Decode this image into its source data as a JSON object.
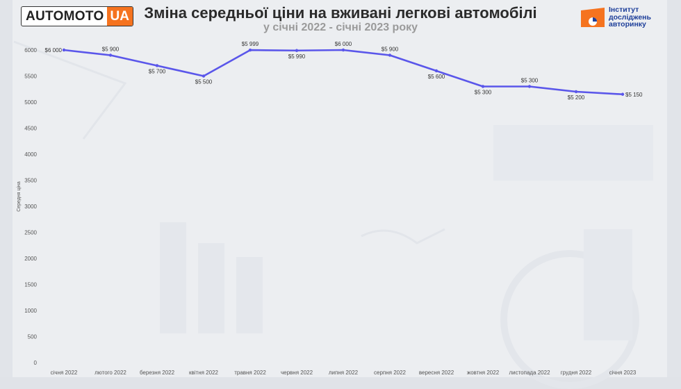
{
  "header": {
    "title": "Зміна середньої ціни на вживані легкові автомобілі",
    "subtitle": "у січні 2022 - січні 2023 року"
  },
  "logo_left": {
    "word": "AUTOMOTO",
    "tag": "UA",
    "tag_color": "#f5731f"
  },
  "logo_right": {
    "lines": [
      "Інститут",
      "досліджень",
      "авторинку"
    ],
    "accent_color": "#f5731f",
    "text_color": "#1e3f9a"
  },
  "chart_data": {
    "type": "line",
    "title": "Зміна середньої ціни на вживані легкові автомобілі",
    "subtitle": "у січні 2022 - січні 2023 року",
    "xlabel": "",
    "ylabel": "Середня ціна",
    "ylim": [
      0,
      6000
    ],
    "yticks": [
      0,
      500,
      1000,
      1500,
      2000,
      2500,
      3000,
      3500,
      4000,
      4500,
      5000,
      5500,
      6000
    ],
    "grid": false,
    "legend": "none",
    "line_color": "#5a56ea",
    "categories": [
      "січня 2022",
      "лютого 2022",
      "березня 2022",
      "квітня 2022",
      "травня 2022",
      "червня 2022",
      "липня 2022",
      "серпня 2022",
      "вересня 2022",
      "жовтня 2022",
      "листопада 2022",
      "грудня 2022",
      "січня 2023"
    ],
    "series": [
      {
        "values": [
          6000,
          5900,
          5700,
          5500,
          5999,
          5990,
          6000,
          5900,
          5600,
          5300,
          5300,
          5200,
          5150
        ],
        "labels": [
          "$6 000",
          "$5 900",
          "$5 700",
          "$5 500",
          "$5 999",
          "$5 990",
          "$6 000",
          "$5 900",
          "$5 600",
          "$5 300",
          "$5 300",
          "$5 200",
          "$5 150"
        ]
      }
    ]
  }
}
